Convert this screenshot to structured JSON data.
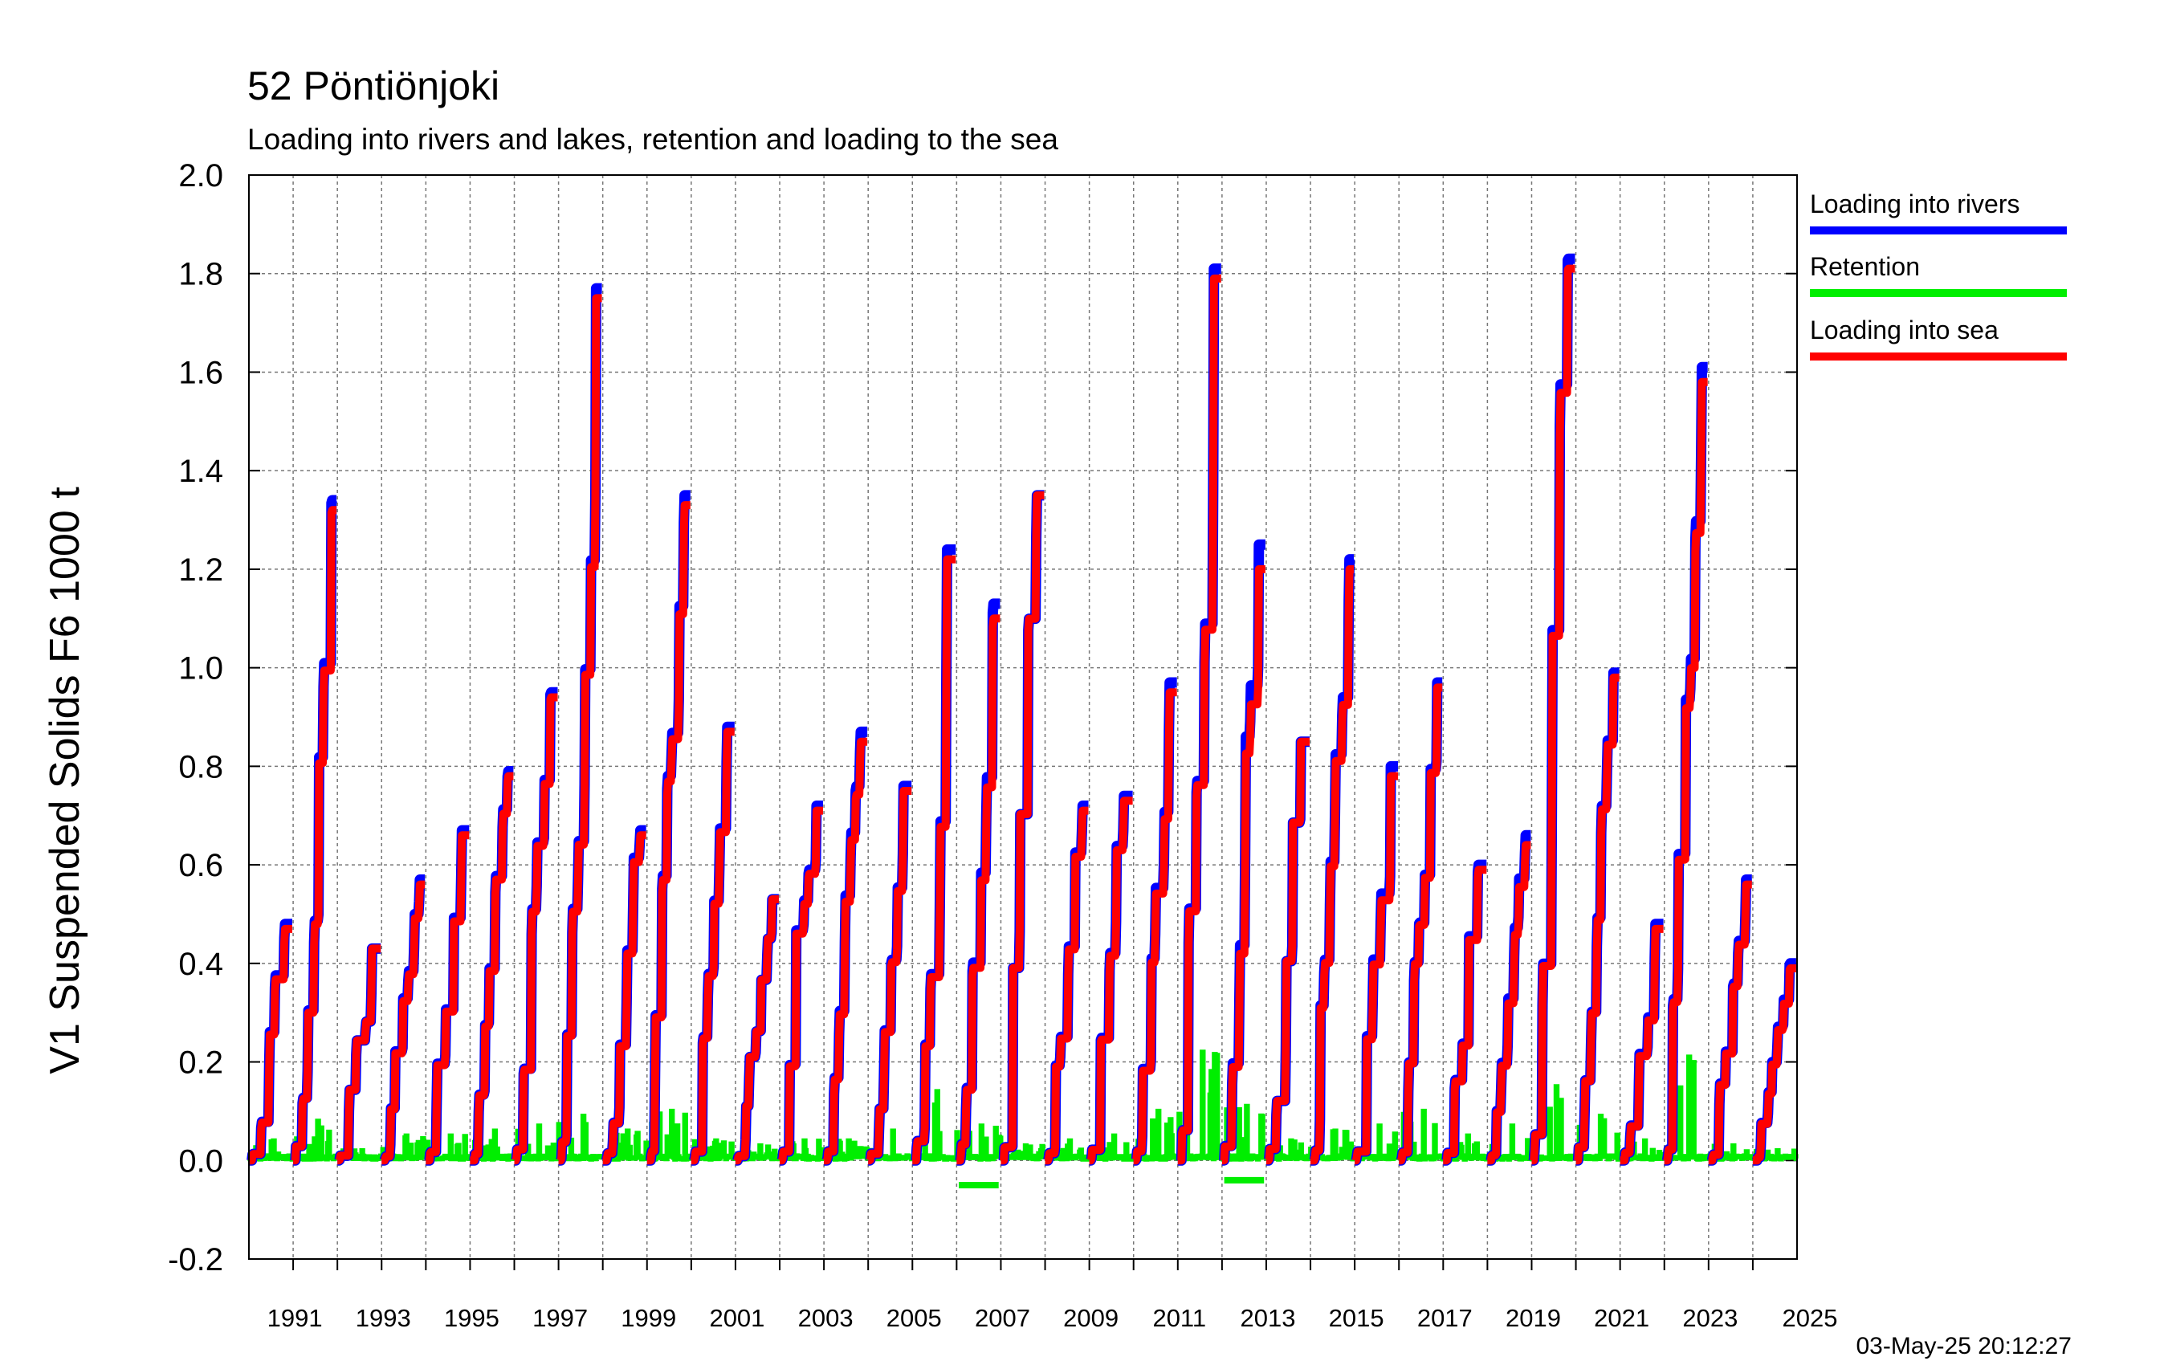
{
  "chart_data": {
    "type": "line",
    "title": "52 Pöntiönjoki",
    "subtitle": "Loading into rivers and lakes, retention and loading to the sea",
    "ylabel": "V1 Suspended Solids F6 1000 t",
    "xlabel": "",
    "ylim": [
      -0.2,
      2.0
    ],
    "xlim": [
      1990,
      2025
    ],
    "y_ticks": [
      "2.0",
      "1.8",
      "1.6",
      "1.4",
      "1.2",
      "1.0",
      "0.8",
      "0.6",
      "0.4",
      "0.2",
      "0.0",
      "-0.2"
    ],
    "x_tick_labels": [
      "1991",
      "1993",
      "1995",
      "1997",
      "1999",
      "2001",
      "2003",
      "2005",
      "2007",
      "2009",
      "2011",
      "2013",
      "2015",
      "2017",
      "2019",
      "2021",
      "2023",
      "2025"
    ],
    "grid": true,
    "legend_position": "right",
    "timestamp": "03-May-25 20:12:27",
    "series": [
      {
        "name": "Loading into rivers",
        "color": "#0000ff",
        "annual_totals": [
          {
            "year": 1990,
            "value": 0.48
          },
          {
            "year": 1991,
            "value": 1.34
          },
          {
            "year": 1992,
            "value": 0.43
          },
          {
            "year": 1993,
            "value": 0.57
          },
          {
            "year": 1994,
            "value": 0.67
          },
          {
            "year": 1995,
            "value": 0.79
          },
          {
            "year": 1996,
            "value": 0.95
          },
          {
            "year": 1997,
            "value": 1.77
          },
          {
            "year": 1998,
            "value": 0.67
          },
          {
            "year": 1999,
            "value": 1.35
          },
          {
            "year": 2000,
            "value": 0.88
          },
          {
            "year": 2001,
            "value": 0.53
          },
          {
            "year": 2002,
            "value": 0.72
          },
          {
            "year": 2003,
            "value": 0.87
          },
          {
            "year": 2004,
            "value": 0.76
          },
          {
            "year": 2005,
            "value": 1.24
          },
          {
            "year": 2006,
            "value": 1.13
          },
          {
            "year": 2007,
            "value": 1.35
          },
          {
            "year": 2008,
            "value": 0.72
          },
          {
            "year": 2009,
            "value": 0.74
          },
          {
            "year": 2010,
            "value": 0.97
          },
          {
            "year": 2011,
            "value": 1.81
          },
          {
            "year": 2012,
            "value": 1.25
          },
          {
            "year": 2013,
            "value": 0.85
          },
          {
            "year": 2014,
            "value": 1.22
          },
          {
            "year": 2015,
            "value": 0.8
          },
          {
            "year": 2016,
            "value": 0.97
          },
          {
            "year": 2017,
            "value": 0.6
          },
          {
            "year": 2018,
            "value": 0.66
          },
          {
            "year": 2019,
            "value": 1.83
          },
          {
            "year": 2020,
            "value": 0.99
          },
          {
            "year": 2021,
            "value": 0.48
          },
          {
            "year": 2022,
            "value": 1.61
          },
          {
            "year": 2023,
            "value": 0.57
          },
          {
            "year": 2024,
            "value": 0.4
          }
        ]
      },
      {
        "name": "Retention",
        "color": "#00ee00",
        "annual_peaks": [
          {
            "year": 1990,
            "value": 0.04
          },
          {
            "year": 1991,
            "value": 0.08
          },
          {
            "year": 1992,
            "value": 0.02
          },
          {
            "year": 1993,
            "value": 0.05
          },
          {
            "year": 1994,
            "value": 0.05
          },
          {
            "year": 1995,
            "value": 0.06
          },
          {
            "year": 1996,
            "value": 0.07
          },
          {
            "year": 1997,
            "value": 0.09
          },
          {
            "year": 1998,
            "value": 0.06
          },
          {
            "year": 1999,
            "value": 0.1
          },
          {
            "year": 2000,
            "value": 0.04
          },
          {
            "year": 2001,
            "value": 0.03
          },
          {
            "year": 2002,
            "value": 0.04
          },
          {
            "year": 2003,
            "value": 0.04
          },
          {
            "year": 2004,
            "value": 0.06
          },
          {
            "year": 2005,
            "value": 0.14
          },
          {
            "year": 2006,
            "value": 0.07
          },
          {
            "year": 2007,
            "value": 0.03
          },
          {
            "year": 2008,
            "value": 0.04
          },
          {
            "year": 2009,
            "value": 0.05
          },
          {
            "year": 2010,
            "value": 0.1
          },
          {
            "year": 2011,
            "value": 0.22
          },
          {
            "year": 2012,
            "value": 0.11
          },
          {
            "year": 2013,
            "value": 0.04
          },
          {
            "year": 2014,
            "value": 0.06
          },
          {
            "year": 2015,
            "value": 0.07
          },
          {
            "year": 2016,
            "value": 0.1
          },
          {
            "year": 2017,
            "value": 0.05
          },
          {
            "year": 2018,
            "value": 0.07
          },
          {
            "year": 2019,
            "value": 0.15
          },
          {
            "year": 2020,
            "value": 0.09
          },
          {
            "year": 2021,
            "value": 0.04
          },
          {
            "year": 2022,
            "value": 0.21
          },
          {
            "year": 2023,
            "value": 0.03
          },
          {
            "year": 2024,
            "value": 0.02
          }
        ],
        "annual_minima": [
          {
            "year": 2006,
            "value": -0.05
          },
          {
            "year": 2012,
            "value": -0.04
          }
        ]
      },
      {
        "name": "Loading into sea",
        "color": "#ff0000",
        "annual_totals": [
          {
            "year": 1990,
            "value": 0.47
          },
          {
            "year": 1991,
            "value": 1.32
          },
          {
            "year": 1992,
            "value": 0.43
          },
          {
            "year": 1993,
            "value": 0.56
          },
          {
            "year": 1994,
            "value": 0.66
          },
          {
            "year": 1995,
            "value": 0.78
          },
          {
            "year": 1996,
            "value": 0.94
          },
          {
            "year": 1997,
            "value": 1.75
          },
          {
            "year": 1998,
            "value": 0.66
          },
          {
            "year": 1999,
            "value": 1.33
          },
          {
            "year": 2000,
            "value": 0.87
          },
          {
            "year": 2001,
            "value": 0.53
          },
          {
            "year": 2002,
            "value": 0.71
          },
          {
            "year": 2003,
            "value": 0.85
          },
          {
            "year": 2004,
            "value": 0.75
          },
          {
            "year": 2005,
            "value": 1.22
          },
          {
            "year": 2006,
            "value": 1.1
          },
          {
            "year": 2007,
            "value": 1.35
          },
          {
            "year": 2008,
            "value": 0.71
          },
          {
            "year": 2009,
            "value": 0.73
          },
          {
            "year": 2010,
            "value": 0.95
          },
          {
            "year": 2011,
            "value": 1.79
          },
          {
            "year": 2012,
            "value": 1.2
          },
          {
            "year": 2013,
            "value": 0.85
          },
          {
            "year": 2014,
            "value": 1.2
          },
          {
            "year": 2015,
            "value": 0.78
          },
          {
            "year": 2016,
            "value": 0.96
          },
          {
            "year": 2017,
            "value": 0.59
          },
          {
            "year": 2018,
            "value": 0.64
          },
          {
            "year": 2019,
            "value": 1.81
          },
          {
            "year": 2020,
            "value": 0.98
          },
          {
            "year": 2021,
            "value": 0.47
          },
          {
            "year": 2022,
            "value": 1.58
          },
          {
            "year": 2023,
            "value": 0.56
          },
          {
            "year": 2024,
            "value": 0.39
          }
        ]
      }
    ]
  }
}
